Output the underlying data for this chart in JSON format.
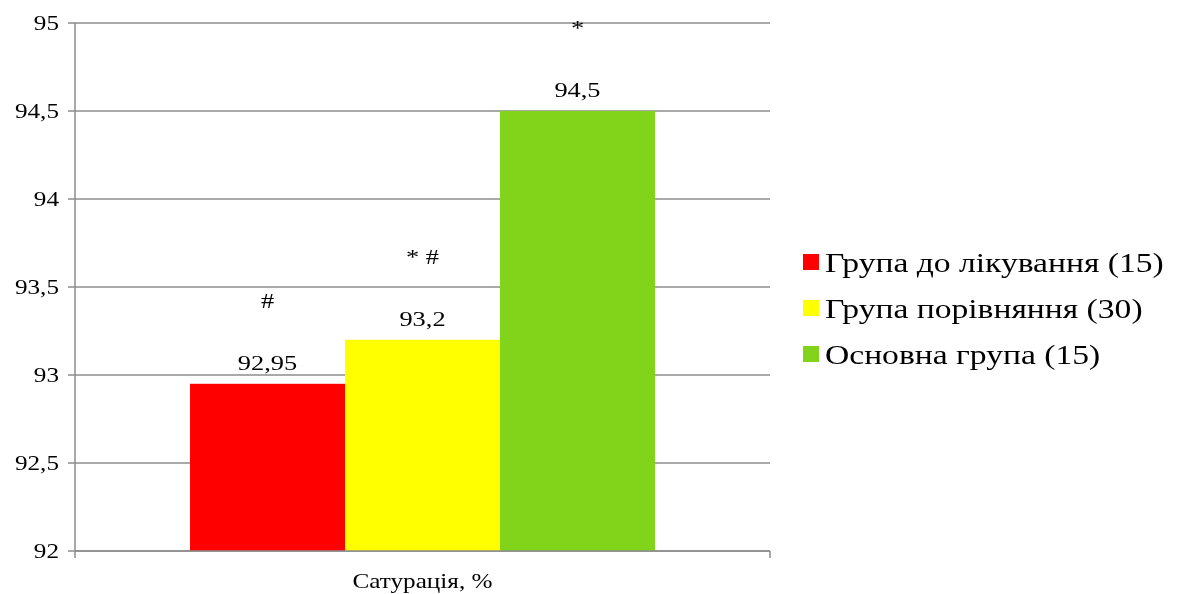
{
  "chart_data": {
    "type": "bar",
    "categories": [
      "Сатурація, %"
    ],
    "series": [
      {
        "name": "Група до лікування (15)",
        "color": "#ff0000",
        "values": [
          92.95
        ],
        "value_labels": [
          "92,95"
        ]
      },
      {
        "name": "Група порівняння (30)",
        "color": "#ffff00",
        "values": [
          93.2
        ],
        "value_labels": [
          "93,2"
        ]
      },
      {
        "name": "Основна група (15)",
        "color": "#81d41a",
        "values": [
          94.5
        ],
        "value_labels": [
          "94,5"
        ]
      }
    ],
    "ylim": [
      92,
      95
    ],
    "yticks": [
      92,
      {
        "value": 92.5,
        "label": "92,5"
      },
      93,
      {
        "value": 93.5,
        "label": "93,5"
      },
      94,
      {
        "value": 94.5,
        "label": "94,5"
      },
      95
    ],
    "grid": "y",
    "legend": "right",
    "annotations": [
      "#",
      "* #",
      "*"
    ]
  }
}
